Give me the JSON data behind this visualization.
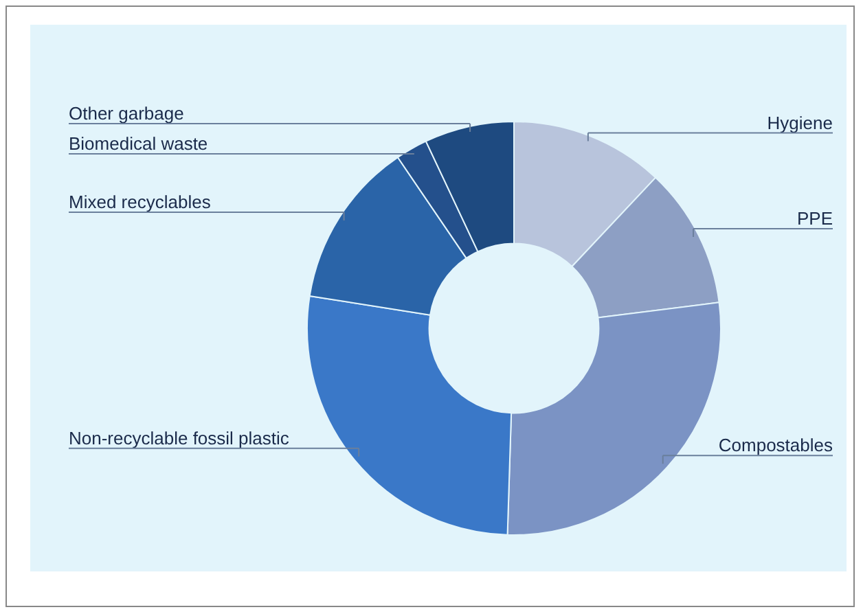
{
  "chart_data": {
    "type": "donut",
    "legend": false,
    "categories": [
      "Hygiene",
      "PPE",
      "Compostables",
      "Non-recyclable fossil plastic",
      "Mixed recyclables",
      "Biomedical waste",
      "Other garbage"
    ],
    "values": [
      12,
      11,
      27.5,
      27,
      13,
      2.5,
      7
    ],
    "colors": [
      "#b8c4dc",
      "#8d9fc4",
      "#7b93c4",
      "#3a78c8",
      "#2a64a8",
      "#24508c",
      "#1e4a80"
    ]
  }
}
